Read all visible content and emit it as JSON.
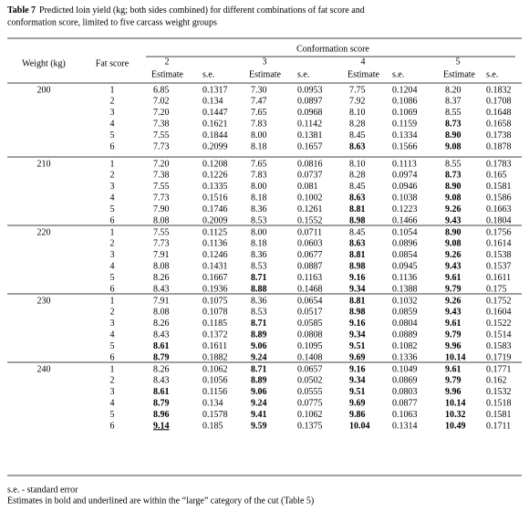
{
  "caption": {
    "label": "Table 7",
    "lines": [
      "Predicted loin yield (kg; both sides combined) for different combinations of fat score and",
      "conformation score, limited to five carcass weight groups"
    ]
  },
  "table": {
    "header": {
      "weight": "Weight (kg)",
      "fat_score": "Fat score",
      "group": "Conformation score",
      "scores": [
        "2",
        "3",
        "4",
        "5"
      ],
      "sub": [
        "Estimate",
        "s.e.",
        "Estimate",
        "s.e.",
        "Estimate",
        "s.e.",
        "Estimate",
        "s.e."
      ]
    },
    "groups": [
      {
        "weight": "200",
        "rows": [
          [
            "1",
            "6.85",
            "0.1317",
            "7.30",
            "0.0953",
            "7.75",
            "0.1204",
            "8.20",
            "0.1832"
          ],
          [
            "2",
            "7.02",
            "0.134",
            "7.47",
            "0.0897",
            "7.92",
            "0.1086",
            "8.37",
            "0.1708"
          ],
          [
            "3",
            "7.20",
            "0.1447",
            "7.65",
            "0.0968",
            "8.10",
            "0.1069",
            "8.55",
            "0.1648"
          ],
          [
            "4",
            "7.38",
            "0.1621",
            "7.83",
            "0.1142",
            "8.28",
            "0.1159",
            {
              "text": "8.73",
              "bold": true
            },
            "0.1658"
          ],
          [
            "5",
            "7.55",
            "0.1844",
            "8.00",
            "0.1381",
            "8.45",
            "0.1334",
            {
              "text": "8.90",
              "bold": true
            },
            "0.1738"
          ],
          [
            "6",
            "7.73",
            "0.2099",
            "8.18",
            "0.1657",
            {
              "text": "8.63",
              "bold": true
            },
            "0.1566",
            {
              "text": "9.08",
              "bold": true
            },
            "0.1878"
          ]
        ]
      },
      {
        "weight": "210",
        "rows": [
          [
            "1",
            "7.20",
            "0.1208",
            "7.65",
            "0.0816",
            "8.10",
            "0.1113",
            "8.55",
            "0.1783"
          ],
          [
            "2",
            "7.38",
            "0.1226",
            "7.83",
            "0.0737",
            "8.28",
            "0.0974",
            {
              "text": "8.73",
              "bold": true
            },
            "0.165"
          ],
          [
            "3",
            "7.55",
            "0.1335",
            "8.00",
            "0.081",
            "8.45",
            "0.0946",
            {
              "text": "8.90",
              "bold": true
            },
            "0.1581"
          ],
          [
            "4",
            "7.73",
            "0.1516",
            "8.18",
            "0.1002",
            {
              "text": "8.63",
              "bold": true
            },
            "0.1038",
            {
              "text": "9.08",
              "bold": true
            },
            "0.1586"
          ],
          [
            "5",
            "7.90",
            "0.1746",
            "8.36",
            "0.1261",
            {
              "text": "8.81",
              "bold": true
            },
            "0.1223",
            {
              "text": "9.26",
              "bold": true
            },
            "0.1663"
          ],
          [
            "6",
            "8.08",
            "0.2009",
            "8.53",
            "0.1552",
            {
              "text": "8.98",
              "bold": true
            },
            "0.1466",
            {
              "text": "9.43",
              "bold": true
            },
            "0.1804"
          ]
        ]
      },
      {
        "weight": "220",
        "rows": [
          [
            "1",
            "7.55",
            "0.1125",
            "8.00",
            "0.0711",
            "8.45",
            "0.1054",
            {
              "text": "8.90",
              "bold": true
            },
            "0.1756"
          ],
          [
            "2",
            "7.73",
            "0.1136",
            "8.18",
            "0.0603",
            {
              "text": "8.63",
              "bold": true
            },
            "0.0896",
            {
              "text": "9.08",
              "bold": true
            },
            "0.1614"
          ],
          [
            "3",
            "7.91",
            "0.1246",
            "8.36",
            "0.0677",
            {
              "text": "8.81",
              "bold": true
            },
            "0.0854",
            {
              "text": "9.26",
              "bold": true
            },
            "0.1538"
          ],
          [
            "4",
            "8.08",
            "0.1431",
            "8.53",
            "0.0887",
            {
              "text": "8.98",
              "bold": true
            },
            "0.0945",
            {
              "text": "9.43",
              "bold": true
            },
            "0.1537"
          ],
          [
            "5",
            "8.26",
            "0.1667",
            {
              "text": "8.71",
              "bold": true
            },
            "0.1163",
            {
              "text": "9.16",
              "bold": true
            },
            "0.1136",
            {
              "text": "9.61",
              "bold": true
            },
            "0.1611"
          ],
          [
            "6",
            "8.43",
            "0.1936",
            {
              "text": "8.88",
              "bold": true
            },
            "0.1468",
            {
              "text": "9.34",
              "bold": true
            },
            "0.1388",
            {
              "text": "9.79",
              "bold": true
            },
            "0.175"
          ]
        ]
      },
      {
        "weight": "230",
        "rows": [
          [
            "1",
            "7.91",
            "0.1075",
            "8.36",
            "0.0654",
            {
              "text": "8.81",
              "bold": true
            },
            "0.1032",
            {
              "text": "9.26",
              "bold": true
            },
            "0.1752"
          ],
          [
            "2",
            "8.08",
            "0.1078",
            "8.53",
            "0.0517",
            {
              "text": "8.98",
              "bold": true
            },
            "0.0859",
            {
              "text": "9.43",
              "bold": true
            },
            "0.1604"
          ],
          [
            "3",
            "8.26",
            "0.1185",
            {
              "text": "8.71",
              "bold": true
            },
            "0.0585",
            {
              "text": "9.16",
              "bold": true
            },
            "0.0804",
            {
              "text": "9.61",
              "bold": true
            },
            "0.1522"
          ],
          [
            "4",
            "8.43",
            "0.1372",
            {
              "text": "8.89",
              "bold": true
            },
            "0.0808",
            {
              "text": "9.34",
              "bold": true
            },
            "0.0889",
            {
              "text": "9.79",
              "bold": true
            },
            "0.1514"
          ],
          [
            "5",
            {
              "text": "8.61",
              "bold": true
            },
            "0.1611",
            {
              "text": "9.06",
              "bold": true
            },
            "0.1095",
            {
              "text": "9.51",
              "bold": true
            },
            "0.1082",
            {
              "text": "9.96",
              "bold": true
            },
            "0.1583"
          ],
          [
            "6",
            {
              "text": "8.79",
              "bold": true
            },
            "0.1882",
            {
              "text": "9.24",
              "bold": true
            },
            "0.1408",
            {
              "text": "9.69",
              "bold": true
            },
            "0.1336",
            {
              "text": "10.14",
              "bold": true
            },
            "0.1719"
          ]
        ]
      },
      {
        "weight": "240",
        "rows": [
          [
            "1",
            "8.26",
            "0.1062",
            {
              "text": "8.71",
              "bold": true
            },
            "0.0657",
            {
              "text": "9.16",
              "bold": true
            },
            "0.1049",
            {
              "text": "9.61",
              "bold": true
            },
            "0.1771"
          ],
          [
            "2",
            "8.43",
            "0.1056",
            {
              "text": "8.89",
              "bold": true
            },
            "0.0502",
            {
              "text": "9.34",
              "bold": true
            },
            "0.0869",
            {
              "text": "9.79",
              "bold": true
            },
            "0.162"
          ],
          [
            "3",
            {
              "text": "8.61",
              "bold": true
            },
            "0.1156",
            {
              "text": "9.06",
              "bold": true
            },
            "0.0555",
            {
              "text": "9.51",
              "bold": true
            },
            "0.0803",
            {
              "text": "9.96",
              "bold": true
            },
            "0.1532"
          ],
          [
            "4",
            {
              "text": "8.79",
              "bold": true
            },
            "0.134",
            {
              "text": "9.24",
              "bold": true
            },
            "0.0775",
            {
              "text": "9.69",
              "bold": true
            },
            "0.0877",
            {
              "text": "10.14",
              "bold": true
            },
            "0.1518"
          ],
          [
            "5",
            {
              "text": "8.96",
              "bold": true
            },
            "0.1578",
            {
              "text": "9.41",
              "bold": true
            },
            "0.1062",
            {
              "text": "9.86",
              "bold": true
            },
            "0.1063",
            {
              "text": "10.32",
              "bold": true
            },
            "0.1581"
          ],
          [
            "6",
            {
              "text": "9.14",
              "bold": true,
              "underline": true
            },
            "0.185",
            {
              "text": "9.59",
              "bold": true
            },
            "0.1375",
            {
              "text": "10.04",
              "bold": true
            },
            "0.1314",
            {
              "text": "10.49",
              "bold": true
            },
            "0.1711"
          ]
        ]
      }
    ]
  },
  "footnotes": [
    "s.e. - standard error",
    "Estimates in bold and underlined are within the “large” category of the cut (Table 5)"
  ]
}
